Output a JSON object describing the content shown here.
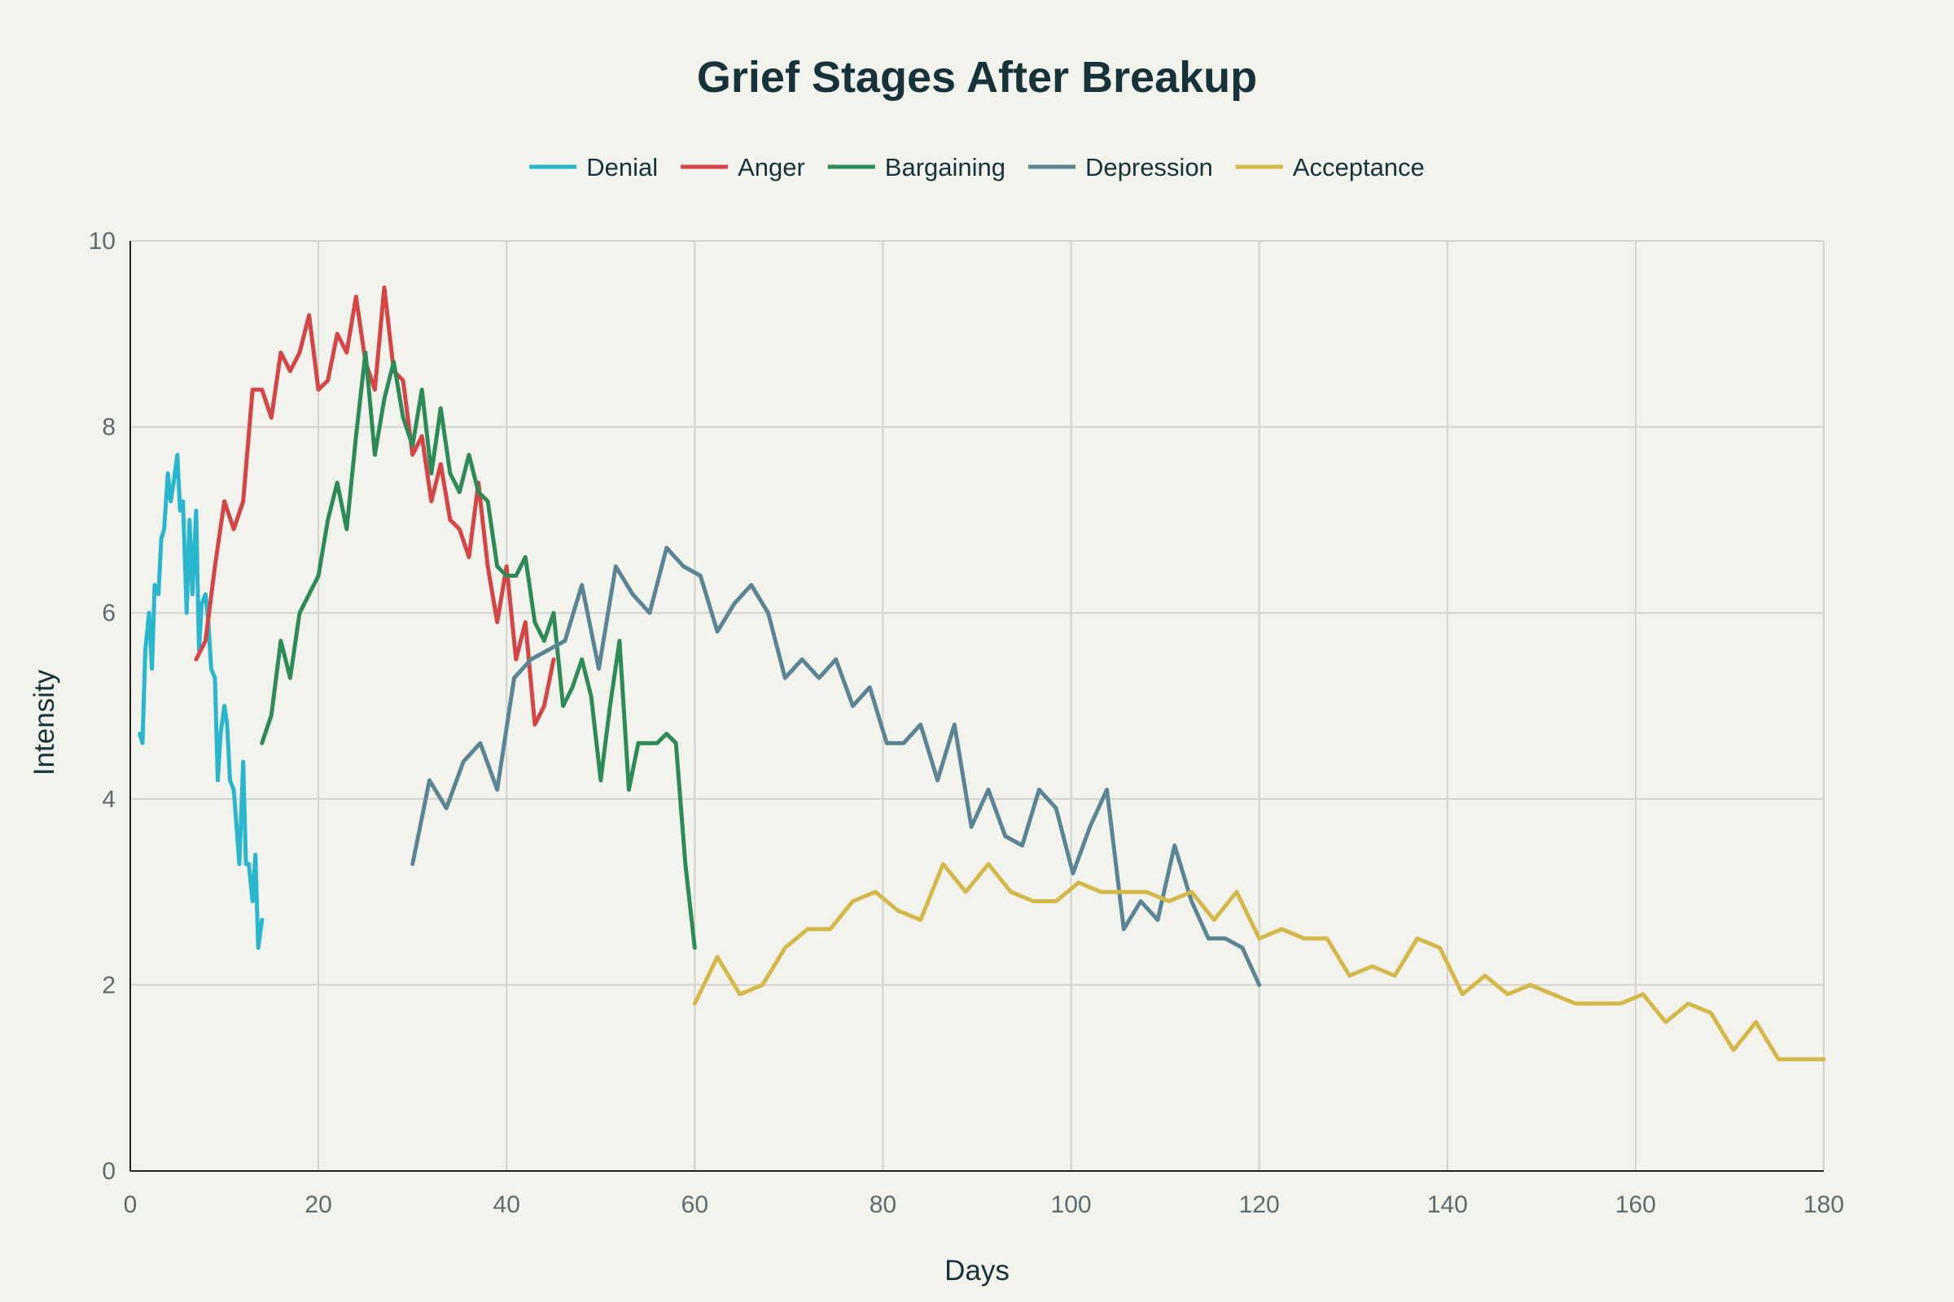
{
  "chart_data": {
    "type": "line",
    "title": "Grief Stages After Breakup",
    "xlabel": "Days",
    "ylabel": "Intensity",
    "xlim": [
      0,
      180
    ],
    "ylim": [
      0,
      10
    ],
    "x_ticks": [
      0,
      20,
      40,
      60,
      80,
      100,
      120,
      140,
      160,
      180
    ],
    "y_ticks": [
      0,
      2,
      4,
      6,
      8,
      10
    ],
    "x_tick_labels": [
      "0",
      "20",
      "40",
      "60",
      "80",
      "100",
      "120",
      "140",
      "160",
      "180"
    ],
    "y_tick_labels": [
      "0",
      "2",
      "4",
      "6",
      "8",
      "10"
    ],
    "grid": true,
    "legend_position": "top-center",
    "series": [
      {
        "name": "Denial",
        "color": "#2ab6cd",
        "x": [
          1,
          1.3,
          1.6,
          2,
          2.3,
          2.6,
          3,
          3.3,
          3.6,
          4,
          4.3,
          4.6,
          5,
          5.3,
          5.6,
          6,
          6.3,
          6.6,
          7,
          7.3,
          7.6,
          8,
          8.3,
          8.6,
          9,
          9.3,
          9.6,
          10,
          10.3,
          10.6,
          11,
          11.3,
          11.6,
          12,
          12.3,
          12.6,
          13,
          13.3,
          13.6,
          14
        ],
        "y": [
          4.7,
          4.6,
          5.6,
          6.0,
          5.4,
          6.3,
          6.2,
          6.8,
          6.9,
          7.5,
          7.2,
          7.4,
          7.7,
          7.1,
          7.2,
          6.0,
          7.0,
          6.2,
          7.1,
          5.6,
          6.1,
          6.2,
          5.9,
          5.4,
          5.3,
          4.2,
          4.7,
          5.0,
          4.8,
          4.2,
          4.1,
          3.7,
          3.3,
          4.4,
          3.3,
          3.3,
          2.9,
          3.4,
          2.4,
          2.7
        ]
      },
      {
        "name": "Anger",
        "color": "#d64545",
        "x": [
          7,
          8,
          9,
          10,
          11,
          12,
          13,
          14,
          15,
          16,
          17,
          18,
          19,
          20,
          21,
          22,
          23,
          24,
          25,
          26,
          27,
          28,
          29,
          30,
          31,
          32,
          33,
          34,
          35,
          36,
          37,
          38,
          39,
          40,
          41,
          42,
          43,
          44,
          45
        ],
        "y": [
          5.5,
          5.7,
          6.5,
          7.2,
          6.9,
          7.2,
          8.4,
          8.4,
          8.1,
          8.8,
          8.6,
          8.8,
          9.2,
          8.4,
          8.5,
          9.0,
          8.8,
          9.4,
          8.7,
          8.4,
          9.5,
          8.6,
          8.5,
          7.7,
          7.9,
          7.2,
          7.6,
          7.0,
          6.9,
          6.6,
          7.4,
          6.5,
          5.9,
          6.5,
          5.5,
          5.9,
          4.8,
          5.0,
          5.5
        ]
      },
      {
        "name": "Bargaining",
        "color": "#2e8b57",
        "x": [
          14,
          15,
          16,
          17,
          18,
          19,
          20,
          21,
          22,
          23,
          24,
          25,
          26,
          27,
          28,
          29,
          30,
          31,
          32,
          33,
          34,
          35,
          36,
          37,
          38,
          39,
          40,
          41,
          42,
          43,
          44,
          45,
          46,
          47,
          48,
          49,
          50,
          51,
          52,
          53,
          54,
          55,
          56,
          57,
          58,
          59,
          60
        ],
        "y": [
          4.6,
          4.9,
          5.7,
          5.3,
          6.0,
          6.2,
          6.4,
          7.0,
          7.4,
          6.9,
          7.9,
          8.8,
          7.7,
          8.3,
          8.7,
          8.1,
          7.8,
          8.4,
          7.5,
          8.2,
          7.5,
          7.3,
          7.7,
          7.3,
          7.2,
          6.5,
          6.4,
          6.4,
          6.6,
          5.9,
          5.7,
          6.0,
          5.0,
          5.2,
          5.5,
          5.1,
          4.2,
          5.0,
          5.7,
          4.1,
          4.6,
          4.6,
          4.6,
          4.7,
          4.6,
          3.3,
          2.4
        ]
      },
      {
        "name": "Depression",
        "color": "#5b8592",
        "x": [
          30,
          31.8,
          33.6,
          35.4,
          37.2,
          39,
          40.8,
          42.6,
          44.4,
          46.2,
          48,
          49.8,
          51.6,
          53.4,
          55.2,
          57,
          58.8,
          60.6,
          62.4,
          64.2,
          66,
          67.8,
          69.6,
          71.4,
          73.2,
          75,
          76.8,
          78.6,
          80.4,
          82.2,
          84,
          85.8,
          87.6,
          89.4,
          91.2,
          93,
          94.8,
          96.6,
          98.4,
          100.2,
          102,
          103.8,
          105.6,
          107.4,
          109.2,
          111,
          112.8,
          114.6,
          116.4,
          118.2,
          120
        ],
        "y": [
          3.3,
          4.2,
          3.9,
          4.4,
          4.6,
          4.1,
          5.3,
          5.5,
          5.6,
          5.7,
          6.3,
          5.4,
          6.5,
          6.2,
          6.0,
          6.7,
          6.5,
          6.4,
          5.8,
          6.1,
          6.3,
          6.0,
          5.3,
          5.5,
          5.3,
          5.5,
          5.0,
          5.2,
          4.6,
          4.6,
          4.8,
          4.2,
          4.8,
          3.7,
          4.1,
          3.6,
          3.5,
          4.1,
          3.9,
          3.2,
          3.7,
          4.1,
          2.6,
          2.9,
          2.7,
          3.5,
          2.9,
          2.5,
          2.5,
          2.4,
          2.0
        ]
      },
      {
        "name": "Acceptance",
        "color": "#d4b94a",
        "x": [
          60,
          62.4,
          64.8,
          67.2,
          69.6,
          72,
          74.4,
          76.8,
          79.2,
          81.6,
          84,
          86.4,
          88.8,
          91.2,
          93.6,
          96,
          98.4,
          100.8,
          103.2,
          105.6,
          108,
          110.4,
          112.8,
          115.2,
          117.6,
          120,
          122.4,
          124.8,
          127.2,
          129.6,
          132,
          134.4,
          136.8,
          139.2,
          141.6,
          144,
          146.4,
          148.8,
          151.2,
          153.6,
          156,
          158.4,
          160.8,
          163.2,
          165.6,
          168,
          170.4,
          172.8,
          175.2,
          177.6,
          180
        ],
        "y": [
          1.8,
          2.3,
          1.9,
          2.0,
          2.4,
          2.6,
          2.6,
          2.9,
          3.0,
          2.8,
          2.7,
          3.3,
          3.0,
          3.3,
          3.0,
          2.9,
          2.9,
          3.1,
          3.0,
          3.0,
          3.0,
          2.9,
          3.0,
          2.7,
          3.0,
          2.5,
          2.6,
          2.5,
          2.5,
          2.1,
          2.2,
          2.1,
          2.5,
          2.4,
          1.9,
          2.1,
          1.9,
          2.0,
          1.9,
          1.8,
          1.8,
          1.8,
          1.9,
          1.6,
          1.8,
          1.7,
          1.3,
          1.6,
          1.2,
          1.2,
          1.2
        ]
      }
    ]
  }
}
